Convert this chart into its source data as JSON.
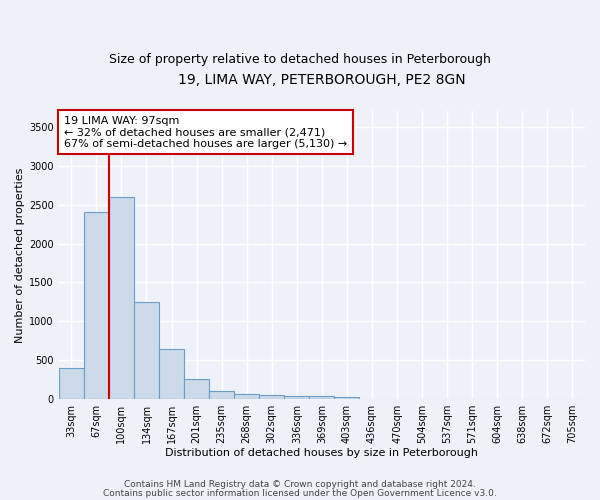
{
  "title": "19, LIMA WAY, PETERBOROUGH, PE2 8GN",
  "subtitle": "Size of property relative to detached houses in Peterborough",
  "xlabel": "Distribution of detached houses by size in Peterborough",
  "ylabel": "Number of detached properties",
  "bar_color": "#ccd9e8",
  "bar_edge_color": "#6a9dc8",
  "background_color": "#eef2f8",
  "grid_color": "#ffffff",
  "categories": [
    "33sqm",
    "67sqm",
    "100sqm",
    "134sqm",
    "167sqm",
    "201sqm",
    "235sqm",
    "268sqm",
    "302sqm",
    "336sqm",
    "369sqm",
    "403sqm",
    "436sqm",
    "470sqm",
    "504sqm",
    "537sqm",
    "571sqm",
    "604sqm",
    "638sqm",
    "672sqm",
    "705sqm"
  ],
  "values": [
    400,
    2400,
    2600,
    1250,
    640,
    260,
    110,
    65,
    55,
    45,
    35,
    30,
    0,
    0,
    0,
    0,
    0,
    0,
    0,
    0,
    0
  ],
  "red_line_x": 1.5,
  "annotation_text": "19 LIMA WAY: 97sqm\n← 32% of detached houses are smaller (2,471)\n67% of semi-detached houses are larger (5,130) →",
  "annotation_box_color": "#ffffff",
  "annotation_border_color": "#cc0000",
  "ylim": [
    0,
    3700
  ],
  "yticks": [
    0,
    500,
    1000,
    1500,
    2000,
    2500,
    3000,
    3500
  ],
  "footer_line1": "Contains HM Land Registry data © Crown copyright and database right 2024.",
  "footer_line2": "Contains public sector information licensed under the Open Government Licence v3.0.",
  "title_fontsize": 10,
  "subtitle_fontsize": 9,
  "axis_label_fontsize": 8,
  "tick_fontsize": 7,
  "annotation_fontsize": 8,
  "footer_fontsize": 6.5
}
